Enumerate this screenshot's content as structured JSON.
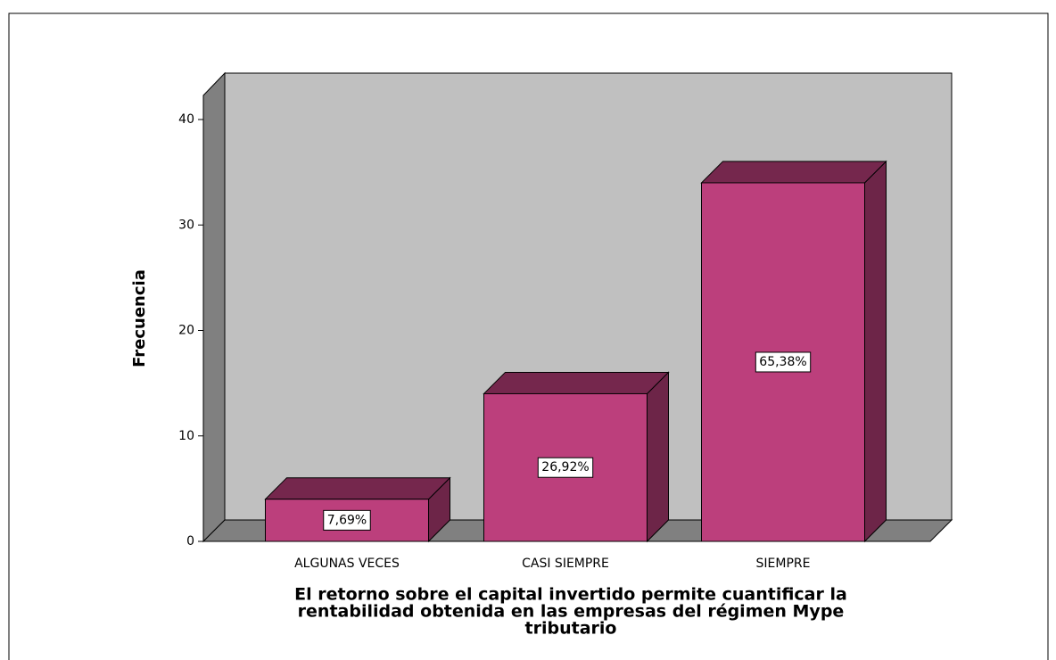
{
  "chart_data": {
    "type": "bar3d",
    "categories": [
      "ALGUNAS VECES",
      "CASI SIEMPRE",
      "SIEMPRE"
    ],
    "values": [
      4,
      14,
      34
    ],
    "percentages": [
      7.69,
      26.92,
      65.38
    ],
    "percentage_labels": [
      "7,69%",
      "26,92%",
      "65,38%"
    ],
    "color": "#bc3f7c",
    "ylabel": "Frecuencia",
    "xlabel": [
      "El retorno sobre el capital invertido permite cuantificar la",
      "rentabilidad  obtenida en las empresas del régimen Mype",
      "tributario"
    ],
    "ylim": [
      0,
      40
    ],
    "yticks": [
      0,
      10,
      20,
      30,
      40
    ]
  }
}
